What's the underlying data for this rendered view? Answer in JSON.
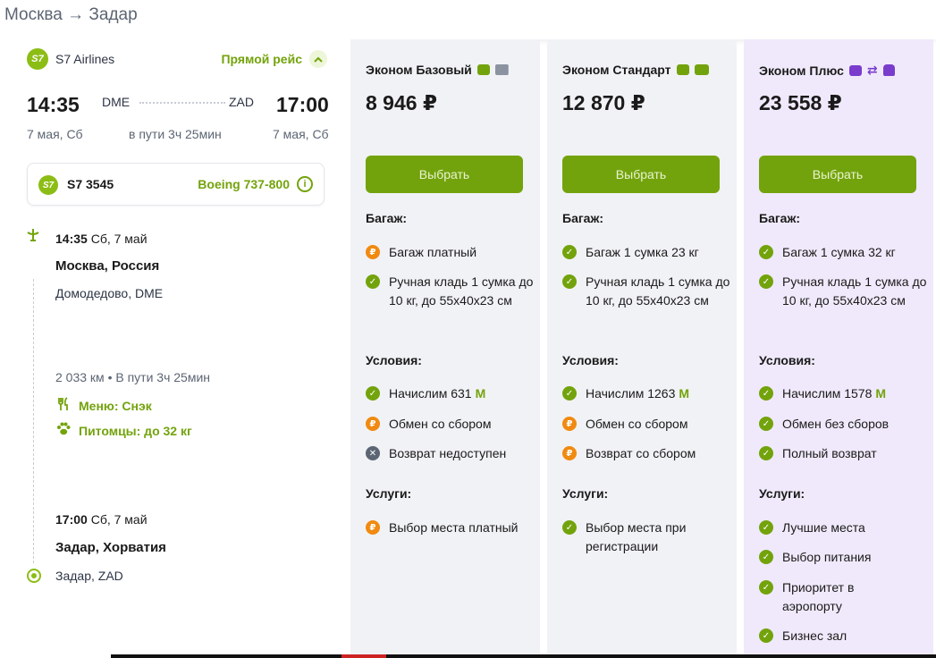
{
  "header": {
    "route": "Москва → Задар"
  },
  "flight": {
    "airline_logo": "S7",
    "airline": "S7 Airlines",
    "direct_label": "Прямой рейс",
    "depart_time": "14:35",
    "depart_code": "DME",
    "arrive_code": "ZAD",
    "arrive_time": "17:00",
    "depart_date": "7 мая, Сб",
    "duration": "в пути 3ч 25мин",
    "arrive_date": "7 мая, Сб",
    "card": {
      "number": "S7 3545",
      "aircraft": "Boeing 737-800",
      "info_glyph": "i"
    },
    "timeline": {
      "depart_time": "14:35",
      "depart_day": "Сб, 7 май",
      "depart_city": "Москва, Россия",
      "depart_airport": "Домодедово, DME",
      "meta": "2 033 км • В пути 3ч 25мин",
      "menu": "Меню: Снэк",
      "pets": "Питомцы: до 32 кг",
      "arrive_time": "17:00",
      "arrive_day": "Сб, 7 май",
      "arrive_city": "Задар, Хорватия",
      "arrive_airport": "Задар, ZAD"
    }
  },
  "labels": {
    "baggage": "Багаж:",
    "conditions": "Условия:",
    "services": "Услуги:",
    "select": "Выбрать",
    "miles_mark": "M"
  },
  "fares": [
    {
      "name": "Эконом Базовый",
      "price": "8 946 ₽",
      "baggage": [
        {
          "status": "paid",
          "text": "Багаж платный"
        },
        {
          "status": "ok",
          "text": "Ручная кладь 1 сумка до 10 кг, до 55х40х23 см"
        }
      ],
      "conditions": [
        {
          "status": "ok",
          "text": "Начислим 631"
        },
        {
          "status": "paid",
          "text": "Обмен со сбором"
        },
        {
          "status": "no",
          "text": "Возврат недоступен"
        }
      ],
      "services": [
        {
          "status": "paid",
          "text": "Выбор места платный"
        }
      ]
    },
    {
      "name": "Эконом Стандарт",
      "price": "12 870 ₽",
      "baggage": [
        {
          "status": "ok",
          "text": "Багаж 1 сумка 23 кг"
        },
        {
          "status": "ok",
          "text": "Ручная кладь 1 сумка до 10 кг, до 55х40х23 см"
        }
      ],
      "conditions": [
        {
          "status": "ok",
          "text": "Начислим 1263"
        },
        {
          "status": "paid",
          "text": "Обмен со сбором"
        },
        {
          "status": "paid",
          "text": "Возврат со сбором"
        }
      ],
      "services": [
        {
          "status": "ok",
          "text": "Выбор места при регистрации"
        }
      ]
    },
    {
      "name": "Эконом Плюс",
      "price": "23 558 ₽",
      "baggage": [
        {
          "status": "ok",
          "text": "Багаж 1 сумка 32 кг"
        },
        {
          "status": "ok",
          "text": "Ручная кладь 1 сумка до 10 кг, до 55х40х23 см"
        }
      ],
      "conditions": [
        {
          "status": "ok",
          "text": "Начислим 1578"
        },
        {
          "status": "ok",
          "text": "Обмен без сборов"
        },
        {
          "status": "ok",
          "text": "Полный возврат"
        }
      ],
      "services": [
        {
          "status": "ok",
          "text": "Лучшие места"
        },
        {
          "status": "ok",
          "text": "Выбор питания"
        },
        {
          "status": "ok",
          "text": "Приоритет в аэропорту"
        },
        {
          "status": "ok",
          "text": "Бизнес зал"
        }
      ]
    }
  ],
  "colors": {
    "brand_green": "#73a30c",
    "paid_orange": "#f08a10",
    "plus_bg": "#f0e9fb",
    "fare_bg": "#f1f2f6"
  }
}
